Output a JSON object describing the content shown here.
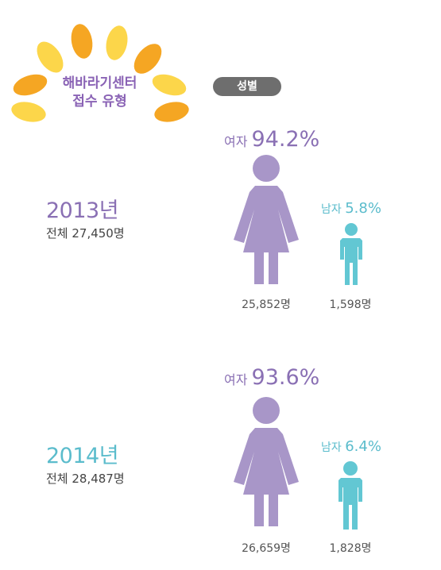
{
  "logo": {
    "line1": "해바라기센터",
    "line2": "접수 유형"
  },
  "badge": "성별",
  "colors": {
    "female": "#a896c8",
    "male": "#62c7d3",
    "female_text": "#8a70b4",
    "male_text": "#5bbccc",
    "year_2013": "#8a70b4",
    "year_2014": "#5bbccc",
    "petal_light": "#fcd64a",
    "petal_dark": "#f5a623"
  },
  "chart_data": [
    {
      "type": "pictogram",
      "category": "성별",
      "year_label": "2013년",
      "total_label": "전체 27,450명",
      "total": 27450,
      "series": [
        {
          "name": "여자",
          "percent": 94.2,
          "percent_label": "94.2%",
          "count": 25852,
          "count_label": "25,852명"
        },
        {
          "name": "남자",
          "percent": 5.8,
          "percent_label": "5.8%",
          "count": 1598,
          "count_label": "1,598명"
        }
      ]
    },
    {
      "type": "pictogram",
      "category": "성별",
      "year_label": "2014년",
      "total_label": "전체 28,487명",
      "total": 28487,
      "series": [
        {
          "name": "여자",
          "percent": 93.6,
          "percent_label": "93.6%",
          "count": 26659,
          "count_label": "26,659명"
        },
        {
          "name": "남자",
          "percent": 6.4,
          "percent_label": "6.4%",
          "count": 1828,
          "count_label": "1,828명"
        }
      ]
    }
  ]
}
